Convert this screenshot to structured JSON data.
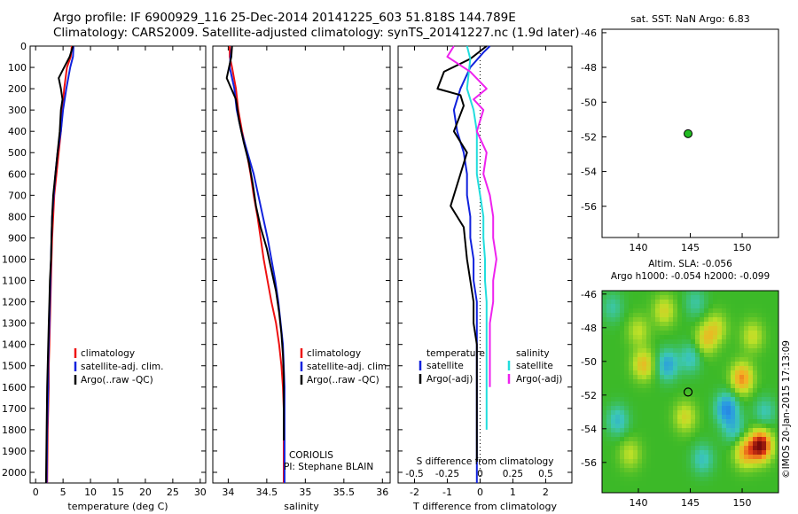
{
  "header": {
    "line1": "Argo profile: IF 6900929_116 25-Dec-2014 20141225_603 51.818S 144.789E",
    "line2": "Climatology: CARS2009. Satellite-adjusted climatology: synTS_20141227.nc (1.9d later)"
  },
  "colors": {
    "climatology": "#ee1111",
    "satellite": "#1122dd",
    "argo": "#000000",
    "sal_satellite": "#22dddd",
    "sal_argo": "#ee22ee",
    "argo_dot": "#22bb22"
  },
  "chart_data": [
    {
      "id": "temperature",
      "type": "line",
      "xlabel": "temperature (deg C)",
      "ylabel": "",
      "xlim": [
        -1,
        31
      ],
      "ylim": [
        2050,
        0
      ],
      "xticks": [
        0,
        5,
        10,
        15,
        20,
        25,
        30
      ],
      "yticks": [
        0,
        100,
        200,
        300,
        400,
        500,
        600,
        700,
        800,
        900,
        1000,
        1100,
        1200,
        1300,
        1400,
        1500,
        1600,
        1700,
        1800,
        1900,
        2000
      ],
      "legend": [
        "climatology",
        "satellite-adj. clim.",
        "Argo(..raw -QC)"
      ],
      "series": [
        {
          "name": "climatology",
          "x": [
            6.6,
            6.4,
            5.7,
            5.2,
            4.9,
            4.6,
            4.2,
            3.8,
            3.4,
            3.2,
            3.0,
            2.9,
            2.8,
            2.7,
            2.6,
            2.5,
            2.4,
            2.4,
            2.3,
            2.2,
            2.1
          ],
          "y": [
            0,
            50,
            100,
            200,
            300,
            400,
            500,
            600,
            700,
            800,
            900,
            1000,
            1100,
            1200,
            1300,
            1400,
            1500,
            1600,
            1700,
            1800,
            2050
          ]
        },
        {
          "name": "satellite-adj. clim.",
          "x": [
            6.9,
            6.8,
            6.3,
            5.6,
            5.0,
            4.6,
            4.0,
            3.6,
            3.3,
            3.0,
            2.9,
            2.8,
            2.7,
            2.6,
            2.5,
            2.4,
            2.3,
            2.3,
            2.2,
            2.1,
            2.0
          ],
          "y": [
            0,
            50,
            100,
            200,
            300,
            400,
            500,
            600,
            700,
            800,
            900,
            1000,
            1100,
            1200,
            1300,
            1400,
            1500,
            1600,
            1700,
            1800,
            2050
          ]
        },
        {
          "name": "Argo(..raw -QC)",
          "x": [
            6.8,
            6.2,
            5.4,
            4.2,
            4.6,
            4.9,
            4.6,
            4.4,
            4.0,
            3.6,
            3.2,
            3.0,
            2.9,
            2.8,
            2.6,
            2.5,
            2.4,
            2.3,
            2.2,
            2.1,
            2.0,
            1.9
          ],
          "y": [
            0,
            50,
            90,
            150,
            200,
            250,
            300,
            400,
            500,
            600,
            700,
            800,
            900,
            1000,
            1100,
            1200,
            1300,
            1400,
            1500,
            1600,
            1800,
            2050
          ]
        }
      ]
    },
    {
      "id": "salinity",
      "type": "line",
      "xlabel": "salinity",
      "ylabel": "",
      "xlim": [
        33.8,
        36.1
      ],
      "ylim": [
        2050,
        0
      ],
      "xticks": [
        34,
        34.5,
        35,
        35.5,
        36
      ],
      "legend": [
        "climatology",
        "satellite-adj. clim.",
        "Argo(..raw -QC)"
      ],
      "annotations": [
        "CORIOLIS",
        "PI: Stephane BLAIN"
      ],
      "series": [
        {
          "name": "climatology",
          "x": [
            34.02,
            34.02,
            34.05,
            34.1,
            34.13,
            34.18,
            34.24,
            34.29,
            34.33,
            34.38,
            34.42,
            34.46,
            34.51,
            34.56,
            34.62,
            34.66,
            34.69,
            34.71,
            34.72,
            34.72,
            34.72
          ],
          "y": [
            0,
            50,
            100,
            200,
            300,
            400,
            500,
            600,
            700,
            800,
            900,
            1000,
            1100,
            1200,
            1300,
            1400,
            1500,
            1600,
            1700,
            1800,
            2050
          ]
        },
        {
          "name": "satellite-adj. clim.",
          "x": [
            34.05,
            34.03,
            34.02,
            34.08,
            34.11,
            34.17,
            34.25,
            34.33,
            34.39,
            34.45,
            34.51,
            34.56,
            34.61,
            34.65,
            34.68,
            34.71,
            34.72,
            34.73,
            34.73,
            34.73,
            34.73
          ],
          "y": [
            0,
            50,
            100,
            200,
            300,
            400,
            500,
            600,
            700,
            800,
            900,
            1000,
            1100,
            1200,
            1300,
            1400,
            1500,
            1600,
            1700,
            1800,
            2050
          ]
        },
        {
          "name": "Argo(..raw -QC)",
          "x": [
            34.05,
            34.04,
            33.98,
            34.1,
            34.14,
            34.2,
            34.27,
            34.32,
            34.36,
            34.42,
            34.5,
            34.56,
            34.62,
            34.66,
            34.69,
            34.71,
            34.72,
            34.72,
            34.72,
            34.72
          ],
          "y": [
            0,
            50,
            150,
            250,
            350,
            450,
            550,
            650,
            750,
            850,
            950,
            1050,
            1150,
            1250,
            1350,
            1450,
            1550,
            1650,
            1750,
            1850
          ]
        }
      ]
    },
    {
      "id": "difference",
      "type": "line",
      "xlabel": "T difference from climatology",
      "xlabel_top": "S difference from climatology",
      "xlim": [
        -2.5,
        2.8
      ],
      "ylim": [
        2050,
        0
      ],
      "xticks": [
        -2,
        -1,
        0,
        1,
        2
      ],
      "xticks_sal_labels": [
        "-0.5",
        "-0.25",
        "0",
        "0.25",
        "0.5"
      ],
      "legend_temperature": {
        "title": "temperature",
        "items": [
          "satellite",
          "Argo(-adj)"
        ]
      },
      "legend_salinity": {
        "title": "salinity",
        "items": [
          "satellite",
          "Argo(-adj)"
        ]
      },
      "series": [
        {
          "name": "temperature satellite",
          "x": [
            0.3,
            0.1,
            -0.3,
            -0.6,
            -0.8,
            -0.7,
            -0.5,
            -0.4,
            -0.4,
            -0.3,
            -0.3,
            -0.2,
            -0.2,
            -0.1,
            -0.1,
            -0.1,
            -0.1,
            -0.1,
            -0.1,
            -0.1
          ],
          "y": [
            0,
            30,
            100,
            200,
            300,
            400,
            500,
            600,
            700,
            800,
            900,
            1000,
            1100,
            1200,
            1300,
            1400,
            1500,
            1600,
            1800,
            2050
          ]
        },
        {
          "name": "temperature Argo(-adj)",
          "x": [
            0.2,
            -0.3,
            -1.1,
            -1.3,
            -0.6,
            -0.5,
            -0.8,
            -0.4,
            -0.6,
            -0.9,
            -0.5,
            -0.4,
            -0.3,
            -0.2,
            -0.2,
            -0.1,
            -0.1,
            -0.1,
            -0.1,
            -0.1
          ],
          "y": [
            0,
            60,
            120,
            200,
            230,
            280,
            400,
            500,
            600,
            750,
            850,
            1000,
            1100,
            1200,
            1300,
            1400,
            1500,
            1600,
            1800,
            1950
          ]
        },
        {
          "name": "salinity satellite",
          "x": [
            -0.4,
            -0.3,
            -0.4,
            -0.2,
            -0.1,
            -0.1,
            -0.1,
            0.0,
            0.1,
            0.1,
            0.15,
            0.15,
            0.2,
            0.2,
            0.2,
            0.2,
            0.2,
            0.2
          ],
          "y": [
            0,
            60,
            200,
            300,
            400,
            500,
            600,
            700,
            800,
            900,
            1000,
            1100,
            1200,
            1300,
            1400,
            1500,
            1600,
            1800
          ]
        },
        {
          "name": "salinity Argo(-adj)",
          "x": [
            -0.8,
            -1.0,
            -0.3,
            0.2,
            -0.2,
            0.1,
            -0.1,
            0.2,
            0.1,
            0.3,
            0.4,
            0.4,
            0.5,
            0.4,
            0.4,
            0.3,
            0.3,
            0.3,
            0.3
          ],
          "y": [
            0,
            50,
            120,
            200,
            250,
            300,
            400,
            500,
            600,
            700,
            800,
            900,
            1000,
            1100,
            1200,
            1300,
            1400,
            1500,
            1600
          ]
        }
      ]
    },
    {
      "id": "sst-map",
      "type": "scatter",
      "title": "sat. SST: NaN Argo: 6.83",
      "xlim": [
        136.5,
        153.5
      ],
      "ylim": [
        -57.8,
        -45.8
      ],
      "xticks": [
        140,
        145,
        150
      ],
      "yticks": [
        -46,
        -48,
        -50,
        -52,
        -54,
        -56
      ],
      "points": [
        {
          "x": 144.789,
          "y": -51.818
        }
      ]
    },
    {
      "id": "sla-map",
      "type": "heatmap",
      "title_line1": "Altim. SLA: -0.056",
      "title_line2": "Argo h1000: -0.054 h2000: -0.099",
      "xlim": [
        136.5,
        153.5
      ],
      "ylim": [
        -57.8,
        -45.8
      ],
      "xticks": [
        140,
        145,
        150
      ],
      "yticks": [
        -46,
        -48,
        -50,
        -52,
        -54,
        -56
      ],
      "points": [
        {
          "x": 144.789,
          "y": -51.818
        }
      ],
      "blobs": [
        {
          "x": 140.5,
          "y": -50.2,
          "v": 0.6
        },
        {
          "x": 140.0,
          "y": -48.2,
          "v": 0.35
        },
        {
          "x": 142.5,
          "y": -47.0,
          "v": 0.45
        },
        {
          "x": 146.5,
          "y": -48.7,
          "v": 0.5
        },
        {
          "x": 147.5,
          "y": -48.0,
          "v": 0.4
        },
        {
          "x": 150.0,
          "y": -51.0,
          "v": 0.8
        },
        {
          "x": 151.0,
          "y": -48.5,
          "v": 0.4
        },
        {
          "x": 144.5,
          "y": -53.3,
          "v": 0.45
        },
        {
          "x": 151.8,
          "y": -55.0,
          "v": 1.3
        },
        {
          "x": 150.3,
          "y": -55.4,
          "v": 0.7
        },
        {
          "x": 139.2,
          "y": -55.5,
          "v": 0.35
        },
        {
          "x": 142.8,
          "y": -50.2,
          "v": -0.6
        },
        {
          "x": 145.0,
          "y": -49.8,
          "v": -0.4
        },
        {
          "x": 148.5,
          "y": -52.8,
          "v": -0.75
        },
        {
          "x": 138.0,
          "y": -53.5,
          "v": -0.45
        },
        {
          "x": 146.2,
          "y": -55.8,
          "v": -0.4
        },
        {
          "x": 149.2,
          "y": -54.0,
          "v": -0.4
        },
        {
          "x": 152.2,
          "y": -53.0,
          "v": -0.35
        },
        {
          "x": 145.5,
          "y": -46.5,
          "v": -0.3
        },
        {
          "x": 137.5,
          "y": -46.8,
          "v": -0.3
        }
      ],
      "credit": "©IMOS 20-Jan-2015 17:13:09"
    }
  ]
}
